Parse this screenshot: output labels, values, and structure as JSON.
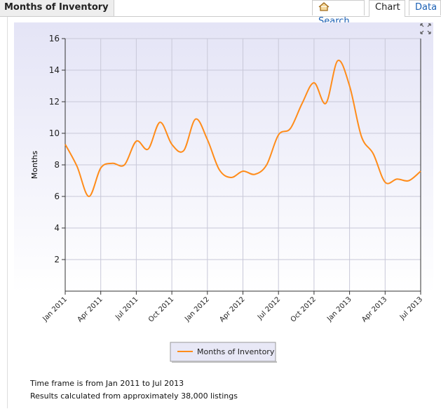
{
  "header": {
    "title": "Months of Inventory",
    "tabs": [
      "Search",
      "Chart",
      "Data"
    ]
  },
  "chart_data": {
    "type": "line",
    "y_label": "Months",
    "categories": [
      "Jan 2011",
      null,
      null,
      "Apr 2011",
      null,
      null,
      "Jul 2011",
      null,
      null,
      "Oct 2011",
      null,
      null,
      "Jan 2012",
      null,
      null,
      "Apr 2012",
      null,
      null,
      "Jul 2012",
      null,
      null,
      "Oct 2012",
      null,
      null,
      "Jan 2013",
      null,
      null,
      "Apr 2013",
      null,
      null,
      "Jul 2013"
    ],
    "series": [
      {
        "name": "Months of Inventory",
        "color": "#ff8c1a",
        "values": [
          9.3,
          7.9,
          6.0,
          7.8,
          8.1,
          8.0,
          9.5,
          9.0,
          10.7,
          9.3,
          8.9,
          10.9,
          9.6,
          7.7,
          7.2,
          7.6,
          7.4,
          8.0,
          9.9,
          10.3,
          11.9,
          13.2,
          11.9,
          14.6,
          13.0,
          9.8,
          8.7,
          6.9,
          7.1,
          7.0,
          7.6
        ]
      }
    ],
    "ylim": [
      0,
      16
    ],
    "yticks": [
      2,
      4,
      6,
      8,
      10,
      12,
      14,
      16
    ],
    "grid": true
  },
  "footer": [
    "Time frame is from Jan 2011 to Jul 2013",
    "Results calculated from approximately 38,000 listings"
  ]
}
